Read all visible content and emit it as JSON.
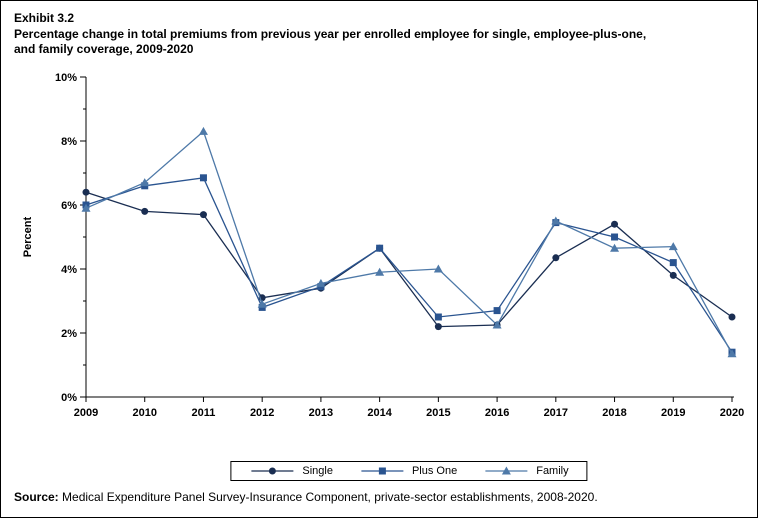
{
  "header": {
    "exhibit": "Exhibit 3.2",
    "title_lines": [
      "Percentage change in total premiums from previous year per enrolled employee for single, employee-plus-one,",
      "and family coverage, 2009-2020"
    ]
  },
  "chart_data": {
    "type": "line",
    "title": "Percentage change in total premiums from previous year per enrolled employee for single, employee-plus-one, and family coverage, 2009-2020",
    "categories": [
      "2009",
      "2010",
      "2011",
      "2012",
      "2013",
      "2014",
      "2015",
      "2016",
      "2017",
      "2018",
      "2019",
      "2020"
    ],
    "series": [
      {
        "name": "Single",
        "marker": "circle",
        "color": "#1A2E52",
        "values": [
          6.4,
          5.8,
          5.7,
          3.1,
          3.4,
          4.65,
          2.2,
          2.25,
          4.35,
          5.4,
          3.8,
          2.5
        ]
      },
      {
        "name": "Plus One",
        "marker": "square",
        "color": "#2A5490",
        "values": [
          6.0,
          6.6,
          6.85,
          2.8,
          3.45,
          4.65,
          2.5,
          2.7,
          5.45,
          5.0,
          4.2,
          1.4
        ]
      },
      {
        "name": "Family",
        "marker": "triangle",
        "color": "#4E79A8",
        "values": [
          5.9,
          6.7,
          8.3,
          2.9,
          3.55,
          3.9,
          4.0,
          2.25,
          5.5,
          4.65,
          4.7,
          1.35
        ]
      }
    ],
    "xlabel": "",
    "ylabel": "Percent",
    "ylim": [
      0,
      10
    ],
    "ytick_step": 2,
    "ytick_labels": [
      "0%",
      "2%",
      "4%",
      "6%",
      "8%",
      "10%"
    ],
    "grid": false,
    "legend_position": "bottom",
    "axis_color": "#000000"
  },
  "source": {
    "label": "Source:",
    "text": "Medical Expenditure Panel Survey-Insurance Component, private-sector establishments, 2008-2020."
  }
}
